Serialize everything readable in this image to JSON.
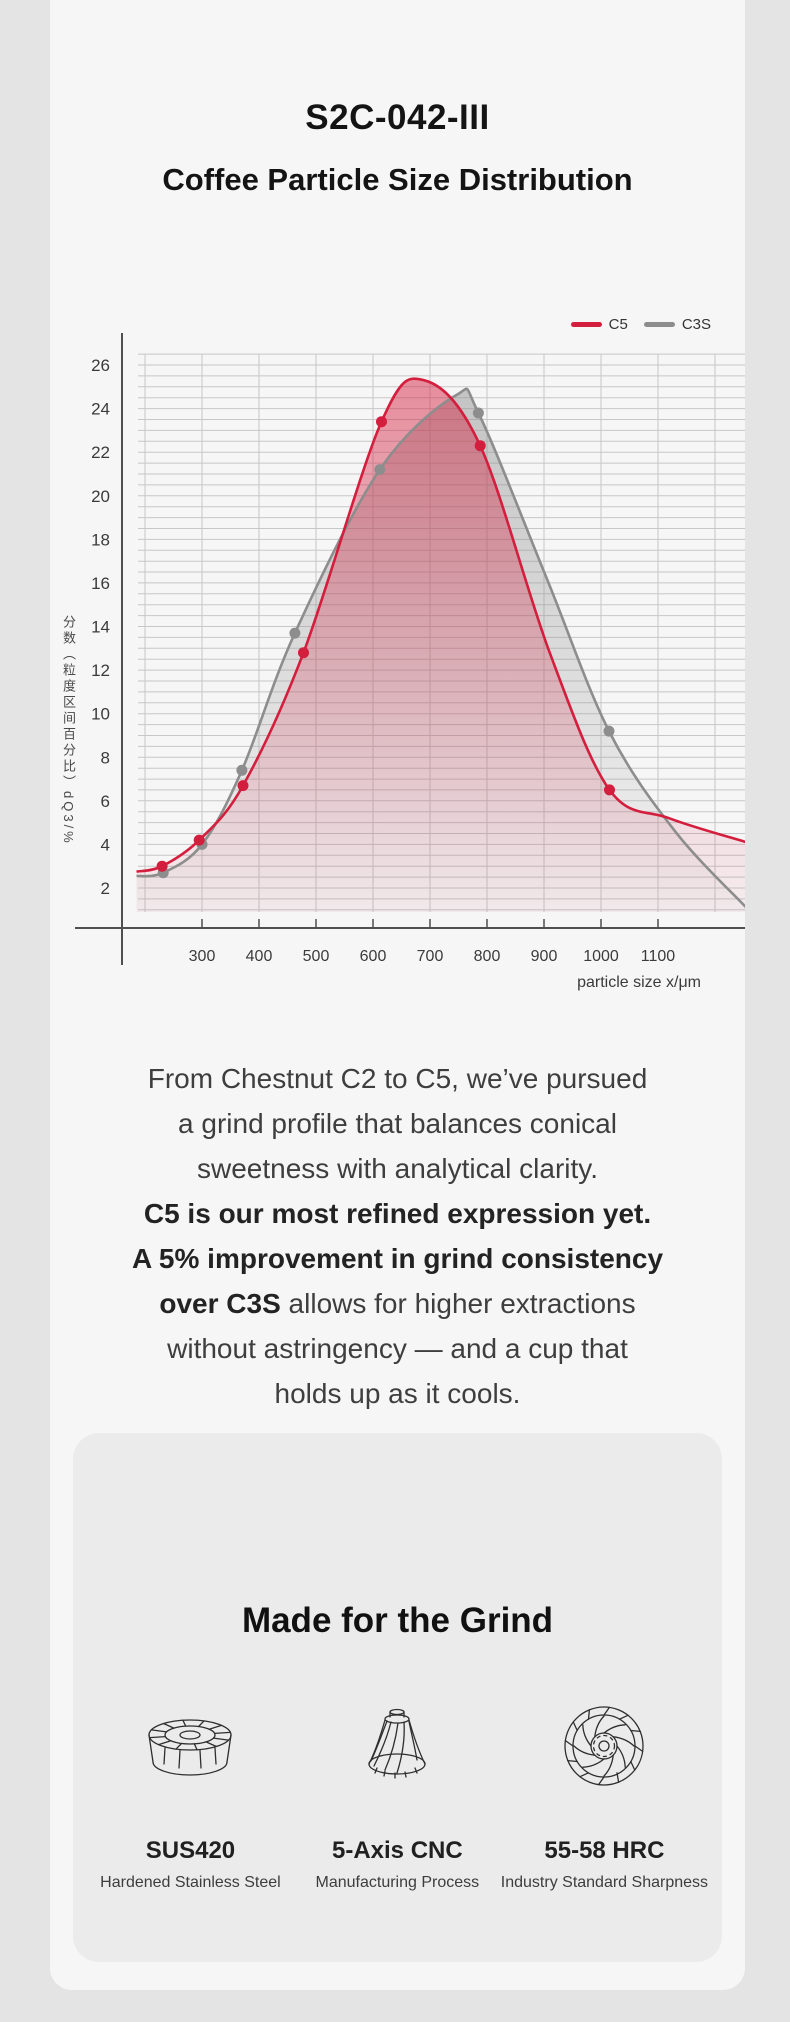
{
  "page": {
    "model": "S2C-042-III",
    "title": "Coffee Particle Size Distribution"
  },
  "chart": {
    "legend": [
      {
        "label": "C5",
        "color": "#d41e3d"
      },
      {
        "label": "C3S",
        "color": "#8d8d8d"
      }
    ],
    "y_axis_label": "分数（粒度区间百分比）dQ3/%",
    "x_axis_label": "particle size x/μm",
    "x_ticks": [
      300,
      400,
      500,
      600,
      700,
      800,
      900,
      1000,
      1100
    ],
    "y_ticks": [
      2,
      4,
      6,
      8,
      10,
      12,
      14,
      16,
      18,
      20,
      22,
      24,
      26
    ]
  },
  "chart_data": {
    "type": "line",
    "title": "Coffee Particle Size Distribution",
    "xlabel": "particle size x/μm",
    "ylabel": "分数（粒度区间百分比）dQ3/%",
    "xlim": [
      150,
      1250
    ],
    "ylim": [
      0,
      27
    ],
    "grid": true,
    "legend_position": "top-right",
    "series": [
      {
        "name": "C5",
        "color": "#d41e3d",
        "x": [
          230,
          295,
          372,
          478,
          615,
          788,
          1015
        ],
        "y": [
          3.0,
          4.2,
          6.7,
          12.8,
          23.4,
          22.3,
          6.5
        ],
        "curve_anchors": [
          [
            185,
            2.75
          ],
          [
            230,
            3.0
          ],
          [
            295,
            4.2
          ],
          [
            372,
            6.7
          ],
          [
            478,
            12.8
          ],
          [
            615,
            23.4
          ],
          [
            690,
            25.3
          ],
          [
            788,
            22.3
          ],
          [
            910,
            12.8
          ],
          [
            1015,
            6.5
          ],
          [
            1120,
            5.2
          ],
          [
            1255,
            4.1
          ]
        ]
      },
      {
        "name": "C3S",
        "color": "#8d8d8d",
        "x": [
          232,
          300,
          370,
          463,
          612,
          785,
          1014
        ],
        "y": [
          2.7,
          4.0,
          7.4,
          13.7,
          21.2,
          23.8,
          9.2
        ],
        "curve_anchors": [
          [
            185,
            2.55
          ],
          [
            232,
            2.7
          ],
          [
            300,
            4.0
          ],
          [
            370,
            7.4
          ],
          [
            463,
            13.7
          ],
          [
            612,
            21.2
          ],
          [
            745,
            24.6
          ],
          [
            785,
            23.8
          ],
          [
            905,
            16.2
          ],
          [
            1014,
            9.2
          ],
          [
            1130,
            4.6
          ],
          [
            1255,
            1.1
          ]
        ]
      }
    ]
  },
  "paragraph": {
    "lines": [
      {
        "runs": [
          {
            "text": "From Chestnut C2 to C5, we’ve pursued",
            "bold": false
          }
        ]
      },
      {
        "runs": [
          {
            "text": "a grind profile that balances conical",
            "bold": false
          }
        ]
      },
      {
        "runs": [
          {
            "text": "sweetness with analytical clarity.",
            "bold": false
          }
        ]
      },
      {
        "runs": [
          {
            "text": "C5 is our most refined expression yet.",
            "bold": true
          }
        ]
      },
      {
        "runs": [
          {
            "text": "A 5% improvement in grind consistency",
            "bold": true
          }
        ]
      },
      {
        "runs": [
          {
            "text": "over C3S",
            "bold": true
          },
          {
            "text": " allows for higher extractions",
            "bold": false
          }
        ]
      },
      {
        "runs": [
          {
            "text": "without astringency — and a cup that",
            "bold": false
          }
        ]
      },
      {
        "runs": [
          {
            "text": "holds up as it cools.",
            "bold": false
          }
        ]
      }
    ]
  },
  "features": {
    "heading": "Made for the Grind",
    "items": [
      {
        "icon": "burr-ring-icon",
        "title": "SUS420",
        "subtitle": "Hardened Stainless Steel"
      },
      {
        "icon": "burr-cone-icon",
        "title": "5-Axis CNC",
        "subtitle": "Manufacturing Process"
      },
      {
        "icon": "burr-disc-icon",
        "title": "55-58 HRC",
        "subtitle": "Industry Standard Sharpness"
      }
    ]
  },
  "colors": {
    "page_bg": "#e4e4e5",
    "card_bg": "#f6f6f7",
    "panel_bg": "#ebebec",
    "accent_red": "#d41e3d",
    "series_gray": "#8d8d8d",
    "grid": "#c7c7c7",
    "axis": "#4f4f4f"
  }
}
